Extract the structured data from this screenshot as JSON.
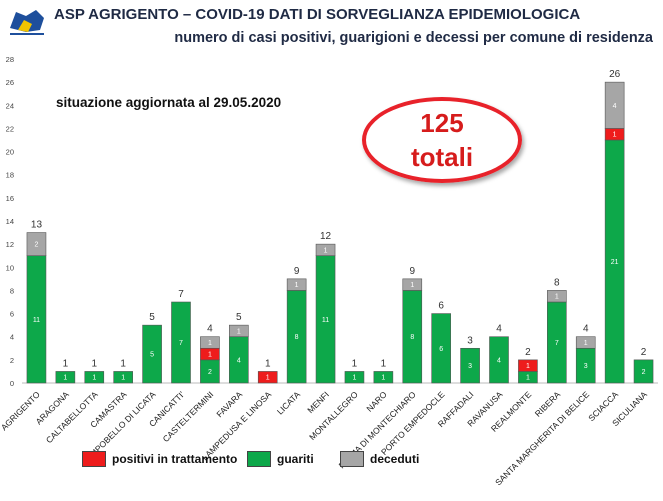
{
  "header": {
    "title": "ASP AGRIGENTO – COVID-19    DATI DI SORVEGLIANZA EPIDEMIOLOGICA",
    "subtitle": "numero di casi positivi, guarigioni e decessi per comune di residenza",
    "updated": "situazione aggiornata al 29.05.2020"
  },
  "callout": {
    "number": "125",
    "label": "totali"
  },
  "colors": {
    "positivi": "#ee1c1c",
    "guariti": "#0da84a",
    "deceduti": "#a6a6a6",
    "callout": "#e8222a"
  },
  "chart_data": {
    "type": "bar",
    "stacked": true,
    "categories": [
      "AGRIGENTO",
      "ARAGONA",
      "CALTABELLOTTA",
      "CAMASTRA",
      "CAMPOBELLO DI LICATA",
      "CANICATTI'",
      "CASTELTERMINI",
      "FAVARA",
      "LAMPEDUSA E LINOSA",
      "LICATA",
      "MENFI",
      "MONTALLEGRO",
      "NARO",
      "PALMA DI MONTECHIARO",
      "PORTO EMPEDOCLE",
      "RAFFADALI",
      "RAVANUSA",
      "REALMONTE",
      "RIBERA",
      "SANTA MARGHERITA DI BELICE",
      "SCIACCA",
      "SICULIANA"
    ],
    "series": [
      {
        "name": "guariti",
        "values": [
          11,
          1,
          1,
          1,
          5,
          7,
          2,
          4,
          0,
          8,
          11,
          1,
          1,
          8,
          6,
          3,
          4,
          1,
          7,
          3,
          21,
          2
        ]
      },
      {
        "name": "positivi in trattamento",
        "values": [
          0,
          0,
          0,
          0,
          0,
          0,
          1,
          0,
          1,
          0,
          0,
          0,
          0,
          0,
          0,
          0,
          0,
          1,
          0,
          0,
          1,
          0
        ]
      },
      {
        "name": "deceduti",
        "values": [
          2,
          0,
          0,
          0,
          0,
          0,
          1,
          1,
          0,
          1,
          1,
          0,
          0,
          1,
          0,
          0,
          0,
          0,
          1,
          1,
          4,
          0
        ]
      }
    ],
    "totals": [
      13,
      1,
      1,
      1,
      5,
      7,
      4,
      5,
      1,
      9,
      12,
      1,
      1,
      9,
      6,
      3,
      4,
      2,
      8,
      4,
      26,
      2
    ],
    "yticks": [
      "0",
      "2",
      "4",
      "6",
      "8",
      "10",
      "12",
      "14",
      "16",
      "18",
      "20",
      "22",
      "24",
      "26",
      "28"
    ],
    "ylim": [
      0,
      28
    ],
    "grid": false,
    "legend": "bottom",
    "legend_labels": [
      "positivi in trattamento",
      "guariti",
      "deceduti"
    ]
  }
}
